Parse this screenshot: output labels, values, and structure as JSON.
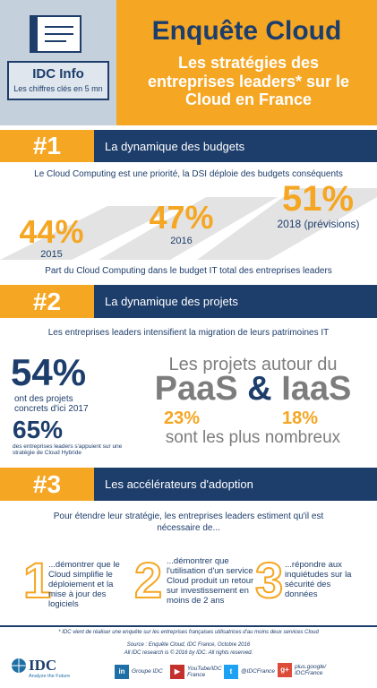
{
  "header": {
    "badge_title": "IDC Info",
    "badge_subtitle": "Les chiffres clés en 5 mn",
    "title": "Enquête Cloud",
    "subtitle": "Les stratégies des entreprises leaders* sur le Cloud en France"
  },
  "section1": {
    "number": "#1",
    "heading": "La dynamique des budgets",
    "intro": "Le Cloud Computing est une priorité, la DSI déploie des budgets conséquents",
    "stats": [
      {
        "value": "44%",
        "label": "2015"
      },
      {
        "value": "47%",
        "label": "2016"
      },
      {
        "value": "51%",
        "label": "2018 (prévisions)"
      }
    ],
    "note": "Part du Cloud Computing dans le budget IT total des entreprises leaders"
  },
  "section2": {
    "number": "#2",
    "heading": "La dynamique des projets",
    "intro": "Les entreprises leaders intensifient la migration de leurs patrimoines IT",
    "stat1": {
      "value": "54%",
      "label": "ont des projets concrets d'ici 2017"
    },
    "stat2": {
      "value": "65%",
      "label": "des entreprises leaders s'appuient sur une stratégie de Cloud Hybride"
    },
    "projects": {
      "lead": "Les projets autour du",
      "paas": "PaaS",
      "amp": "&",
      "iaas": "IaaS",
      "paas_value": "23%",
      "iaas_value": "18%",
      "tail": "sont les plus nombreux"
    }
  },
  "section3": {
    "number": "#3",
    "heading": "Les accélérateurs d'adoption",
    "intro": "Pour étendre leur stratégie, les entreprises leaders estiment qu'il est nécessaire de...",
    "items": [
      {
        "number": "1",
        "text": "...démontrer que le Cloud simplifie le déploiement et la mise à jour des logiciels"
      },
      {
        "number": "2",
        "text": "...démontrer que l'utilisation d'un service Cloud produit un retour sur investissement en moins de 2 ans"
      },
      {
        "number": "3",
        "text": "...répondre aux inquiétudes sur la sécurité des données"
      }
    ]
  },
  "footer": {
    "footnote": "* IDC vient de réaliser une enquête sur les entreprises françaises utilisatrices d'au moins deux services Cloud",
    "source": "Source : Enquête Cloud, IDC France, Octobre 2016",
    "copyright": "All IDC research is © 2016 by IDC. All rights reserved.",
    "logo": "IDC",
    "tagline": "Analyze the Future",
    "social": [
      {
        "icon": "in",
        "label": "Groupe IDC"
      },
      {
        "icon": "▶",
        "label": "YouTube/IDC France"
      },
      {
        "icon": "t",
        "label": "@IDCFrance"
      },
      {
        "icon": "g+",
        "label": "plus.google/ IDCFrance"
      }
    ]
  }
}
